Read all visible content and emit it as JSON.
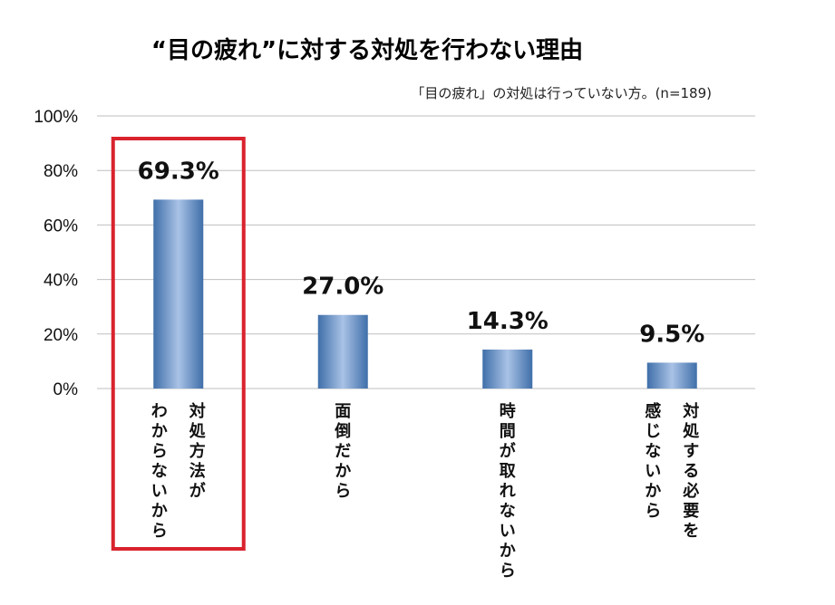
{
  "chart_data": {
    "type": "bar",
    "title": "“目の疲れ”に対する対処を行わない理由",
    "subtitle": "「目の疲れ」の対処は行っていない方。(n=189)",
    "categories": [
      [
        "対処方法が",
        "わからないから"
      ],
      [
        "面倒だから"
      ],
      [
        "時間が取れないから"
      ],
      [
        "対処する必要を",
        "感じないから"
      ]
    ],
    "values": [
      69.3,
      27.0,
      14.3,
      9.5
    ],
    "value_labels": [
      "69.3%",
      "27.0%",
      "14.3%",
      "9.5%"
    ],
    "ylim": [
      0,
      100
    ],
    "yticks": [
      0,
      20,
      40,
      60,
      80,
      100
    ],
    "ytick_labels": [
      "0%",
      "20%",
      "40%",
      "60%",
      "80%",
      "100%"
    ],
    "xlabel": "",
    "ylabel": "",
    "grid": true,
    "highlight_index": 0,
    "colors": {
      "bar": "#4f81bd",
      "bar_light": "#a9c2e6",
      "grid": "#bfbfbf",
      "highlight": "#d9232e"
    }
  }
}
